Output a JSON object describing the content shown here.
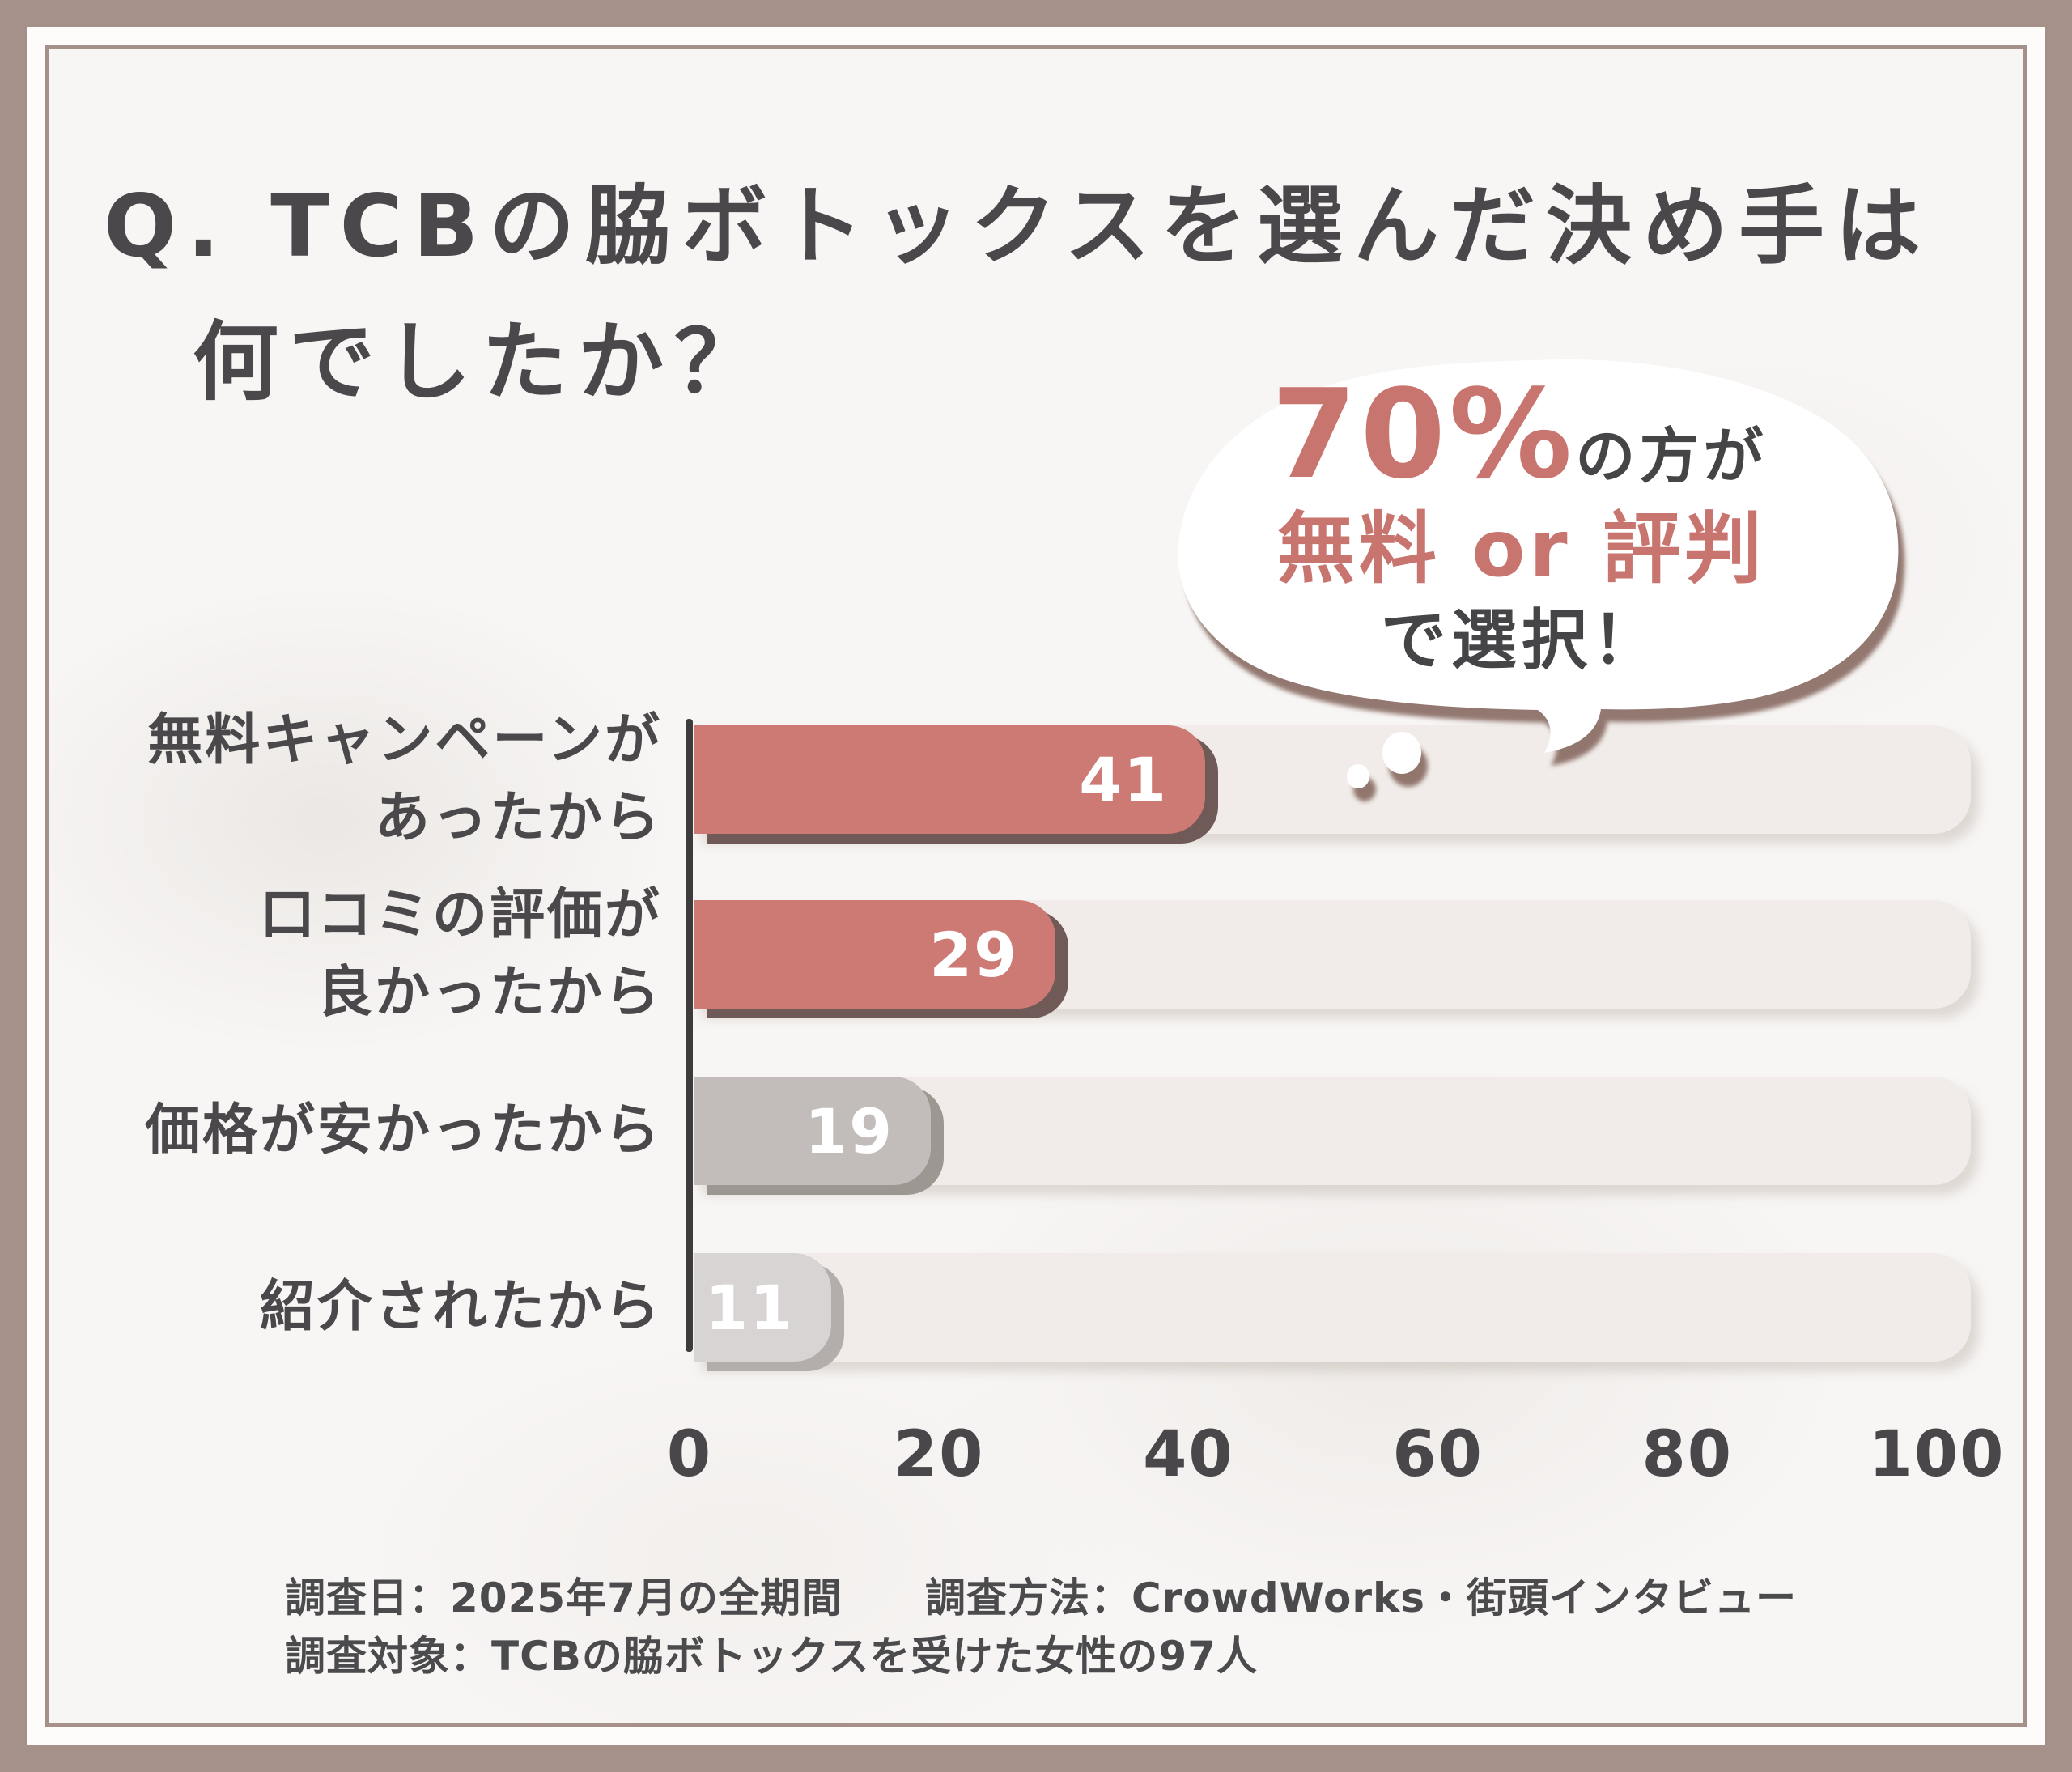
{
  "title": {
    "line1": "Q. TCBの脇ボトックスを選んだ決め手は",
    "line2": "何でしたか？"
  },
  "bubble": {
    "percent": "70%",
    "suffix": "の方が",
    "line2": "無料 or 評判",
    "line3": "で選択！"
  },
  "chart": {
    "category_lines": [
      [
        "無料キャンペーンが",
        "あったから"
      ],
      [
        "口コミの評価が",
        "良かったから"
      ],
      [
        "価格が安かったから"
      ],
      [
        "紹介されたから"
      ]
    ]
  },
  "chart_data": {
    "type": "bar",
    "orientation": "horizontal",
    "title": "Q. TCBの脇ボトックスを選んだ決め手は何でしたか？",
    "categories": [
      "無料キャンペーンがあったから",
      "口コミの評価が良かったから",
      "価格が安かったから",
      "紹介されたから"
    ],
    "values": [
      41,
      29,
      19,
      11
    ],
    "xlabel": "",
    "ylabel": "",
    "xlim": [
      0,
      100
    ],
    "xticks": [
      0,
      20,
      40,
      60,
      80,
      100
    ],
    "grid": false,
    "legend": false,
    "annotation": "70%の方が 無料 or 評判 で選択！",
    "bar_colors": [
      "#cd7a75",
      "#cd7a75",
      "#c2bcba",
      "#d8d4d3"
    ],
    "bar_shadow_colors": [
      "#6f5a57",
      "#6f5a57",
      "#9d9792",
      "#b3aeab"
    ],
    "value_label_color": "#ffffff"
  },
  "footer": {
    "line1": "調査日：2025年7月の全期間　　調査方法：CrowdWorks・街頭インタビュー",
    "line2": "調査対象：TCBの脇ボトックスを受けた女性の97人"
  },
  "colors": {
    "frame": "#a6918a",
    "content_bg": "#f8f6f5",
    "accent_red": "#c8746f",
    "text_dark": "#4a484a",
    "track": "#f1ece9",
    "axis": "#3e3b3c"
  }
}
